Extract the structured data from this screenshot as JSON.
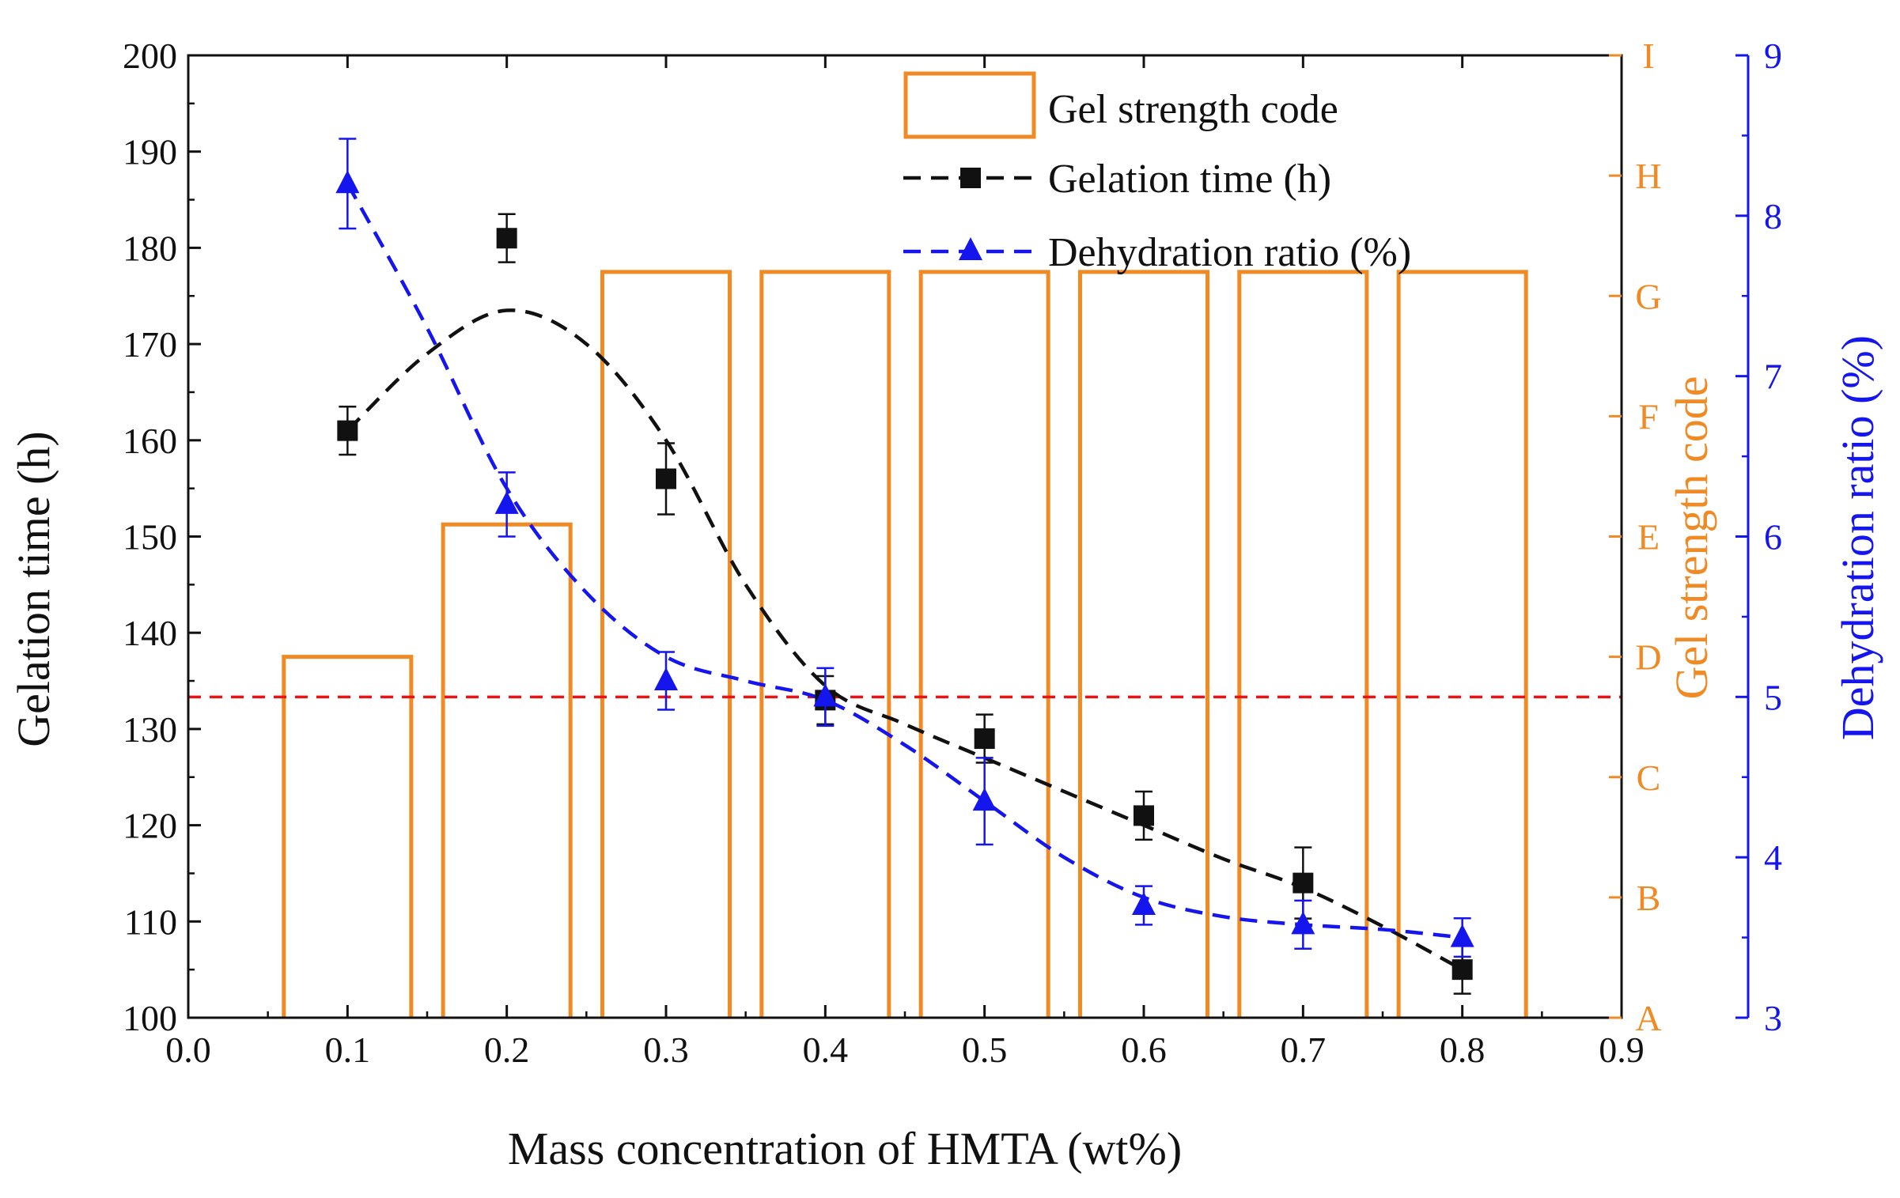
{
  "chart_data": {
    "type": "bar",
    "x_axis": {
      "label": "Mass concentration of HMTA (wt%)",
      "min": 0.0,
      "max": 0.9,
      "ticks": [
        "0.0",
        "0.1",
        "0.2",
        "0.3",
        "0.4",
        "0.5",
        "0.6",
        "0.7",
        "0.8",
        "0.9"
      ]
    },
    "y_left": {
      "label": "Gelation time (h)",
      "min": 100,
      "max": 200,
      "ticks": [
        "100",
        "110",
        "120",
        "130",
        "140",
        "150",
        "160",
        "170",
        "180",
        "190",
        "200"
      ]
    },
    "y_right_code": {
      "label": "Gel strength code",
      "color": "#f08a24",
      "ticks": [
        "A",
        "B",
        "C",
        "D",
        "E",
        "F",
        "G",
        "H",
        "I"
      ]
    },
    "y_right_ratio": {
      "label": "Dehydration ratio (%)",
      "color": "#1515ee",
      "min": 3,
      "max": 9,
      "ticks": [
        "3",
        "4",
        "5",
        "6",
        "7",
        "8",
        "9"
      ]
    },
    "bars": {
      "name": "Gel strength code",
      "x": [
        0.1,
        0.2,
        0.3,
        0.4,
        0.5,
        0.6,
        0.7,
        0.8
      ],
      "code_index": [
        3.0,
        4.1,
        6.2,
        6.2,
        6.2,
        6.2,
        6.2,
        6.2
      ],
      "width": 0.08
    },
    "series": [
      {
        "name": "Gelation time (h)",
        "color": "#111111",
        "axis": "left",
        "x": [
          0.1,
          0.2,
          0.3,
          0.4,
          0.5,
          0.6,
          0.7,
          0.8
        ],
        "values": [
          161,
          181,
          156,
          133,
          129,
          121,
          114,
          105
        ],
        "errors": [
          2.5,
          2.5,
          3.7,
          2.5,
          2.5,
          2.5,
          3.7,
          2.5
        ],
        "fit": [
          [
            0.1,
            161
          ],
          [
            0.15,
            169
          ],
          [
            0.2,
            173.5
          ],
          [
            0.25,
            170
          ],
          [
            0.3,
            160
          ],
          [
            0.35,
            145
          ],
          [
            0.4,
            134.5
          ],
          [
            0.45,
            130.5
          ],
          [
            0.5,
            127
          ],
          [
            0.55,
            123.5
          ],
          [
            0.6,
            120
          ],
          [
            0.65,
            116.5
          ],
          [
            0.7,
            113.5
          ],
          [
            0.75,
            109.5
          ],
          [
            0.8,
            105
          ]
        ]
      },
      {
        "name": "Dehydration ratio (%)",
        "color": "#1515ee",
        "axis": "right",
        "x": [
          0.1,
          0.2,
          0.3,
          0.4,
          0.5,
          0.6,
          0.7,
          0.8
        ],
        "values": [
          8.2,
          6.2,
          5.1,
          5.0,
          4.35,
          3.7,
          3.58,
          3.5
        ],
        "errors": [
          0.28,
          0.2,
          0.18,
          0.18,
          0.27,
          0.12,
          0.15,
          0.12
        ],
        "fit": [
          [
            0.1,
            8.2
          ],
          [
            0.15,
            7.3
          ],
          [
            0.2,
            6.3
          ],
          [
            0.25,
            5.65
          ],
          [
            0.3,
            5.25
          ],
          [
            0.35,
            5.1
          ],
          [
            0.4,
            4.98
          ],
          [
            0.45,
            4.7
          ],
          [
            0.5,
            4.35
          ],
          [
            0.55,
            4.0
          ],
          [
            0.6,
            3.75
          ],
          [
            0.65,
            3.63
          ],
          [
            0.7,
            3.58
          ],
          [
            0.75,
            3.55
          ],
          [
            0.8,
            3.5
          ]
        ]
      }
    ],
    "reference_line": {
      "axis": "right",
      "value": 5,
      "color": "#ee1111"
    },
    "legend": {
      "position": "top-right",
      "entries": [
        "Gel strength code",
        "Gelation time (h)",
        "Dehydration ratio (%)"
      ]
    }
  }
}
